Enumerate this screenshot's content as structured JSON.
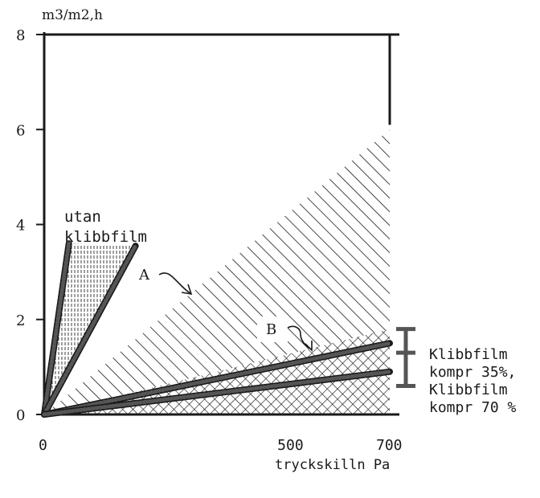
{
  "chart_data": {
    "type": "line",
    "ylabel": "m3/m2,h",
    "xlabel": "tryckskilln Pa",
    "xlim": [
      0,
      700
    ],
    "ylim": [
      0,
      8
    ],
    "x_ticks": [
      "0",
      "500",
      "700"
    ],
    "x_tick_values": [
      0,
      500,
      700
    ],
    "y_ticks": [
      "0",
      "2",
      "4",
      "6",
      "8"
    ],
    "y_tick_values": [
      0,
      2,
      4,
      6,
      8
    ],
    "series": [
      {
        "name": "utan klibbfilm",
        "x": [
          0,
          50
        ],
        "y": [
          0,
          3.6
        ]
      },
      {
        "name": "A",
        "x": [
          0,
          185
        ],
        "y": [
          0,
          3.55
        ]
      },
      {
        "name": "Klibbfilm kompr 35%",
        "x": [
          0,
          700
        ],
        "y": [
          0,
          1.5
        ]
      },
      {
        "name": "Klibbfilm kompr 70 %",
        "x": [
          0,
          700
        ],
        "y": [
          0,
          0.9
        ]
      }
    ],
    "areas": [
      {
        "label": "A",
        "x": [
          0,
          700
        ],
        "y_top": [
          0,
          6.0
        ]
      },
      {
        "label": "B",
        "x": [
          0,
          700
        ],
        "y_top": [
          0,
          1.8
        ]
      }
    ],
    "range_bars": [
      {
        "x": 700,
        "y": [
          0.6,
          1.8
        ]
      }
    ],
    "annotations": {
      "utan_line1": "utan",
      "utan_line2": "klibbfilm",
      "label_a": "A",
      "label_b": "B",
      "right_1_line1": "Klibbfilm",
      "right_1_line2": "kompr 35%,",
      "right_2_line1": "Klibbfilm",
      "right_2_line2": "kompr 70 %"
    },
    "colors": {
      "ink": "#1a1a1a",
      "thick_line": "#555555"
    },
    "grid": false
  }
}
